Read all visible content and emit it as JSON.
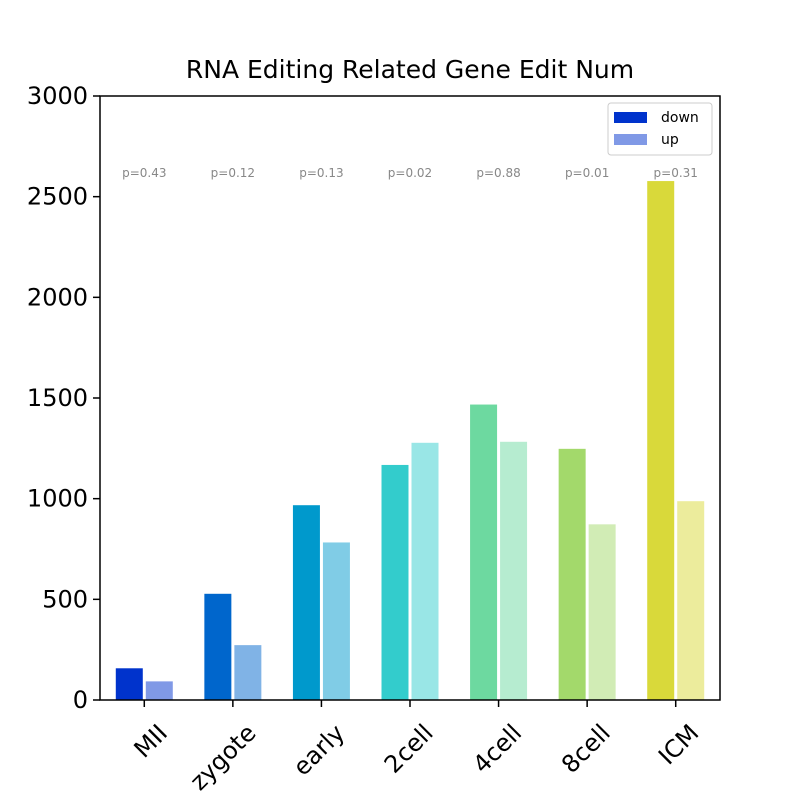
{
  "chart_data": {
    "type": "bar",
    "title": "RNA Editing Related Gene Edit Num",
    "xlabel": "",
    "ylabel": "",
    "categories": [
      "MII",
      "zygote",
      "early",
      "2cell",
      "4cell",
      "8cell",
      "ICM"
    ],
    "series": [
      {
        "name": "down",
        "values": [
          160,
          530,
          970,
          1170,
          1470,
          1250,
          2580
        ],
        "colors": [
          "#0033cc",
          "#0066cc",
          "#0099cc",
          "#33cccc",
          "#6dd9a0",
          "#a3d96b",
          "#d9d93a"
        ]
      },
      {
        "name": "up",
        "values": [
          95,
          275,
          785,
          1280,
          1285,
          875,
          990
        ],
        "colors": [
          "#8099e6",
          "#80b3e6",
          "#80cce6",
          "#99e6e6",
          "#b6ecd0",
          "#d1ecb5",
          "#ecec9c"
        ]
      }
    ],
    "p_values": [
      "p=0.43",
      "p=0.12",
      "p=0.13",
      "p=0.02",
      "p=0.88",
      "p=0.01",
      "p=0.31"
    ],
    "ylim": [
      0,
      3000
    ],
    "yticks": [
      "0",
      "500",
      "1000",
      "1500",
      "2000",
      "2500",
      "3000"
    ],
    "grid": false,
    "legend_position": "top-right",
    "legend_colors": [
      "#0033cc",
      "#8099e6"
    ]
  }
}
